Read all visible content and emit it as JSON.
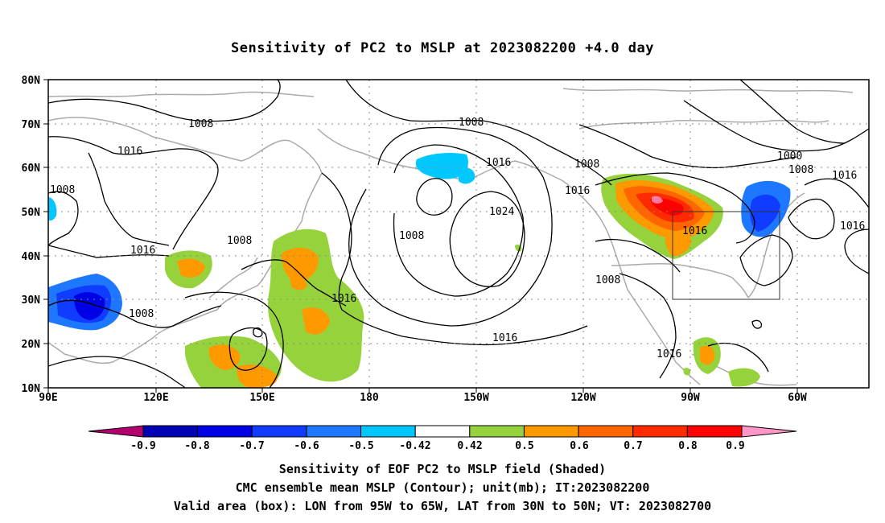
{
  "title": "Sensitivity of PC2 to MSLP at 2023082200 +4.0 day",
  "map": {
    "lon_labels": [
      "90E",
      "120E",
      "150E",
      "180",
      "150W",
      "120W",
      "90W",
      "60W"
    ],
    "lat_labels": [
      "80N",
      "70N",
      "60N",
      "50N",
      "40N",
      "30N",
      "20N",
      "10N"
    ],
    "lon_range": [
      "90E",
      "30W"
    ],
    "lat_range": [
      "10N",
      "80N"
    ],
    "grid": "dotted",
    "valid_box": {
      "lon": [
        "95W",
        "65W"
      ],
      "lat": [
        "30N",
        "50N"
      ]
    },
    "contour_labels": [
      "1008",
      "1016",
      "1024",
      "1000",
      "1016",
      "1008",
      "1016",
      "1008",
      "1016",
      "1008",
      "1016",
      "1008",
      "1016",
      "1016",
      "1008",
      "1016",
      "1008",
      "1008",
      "1008",
      "1016",
      "1016"
    ]
  },
  "colorbar": {
    "labels": [
      "-0.9",
      "-0.8",
      "-0.7",
      "-0.6",
      "-0.5",
      "-0.42",
      "0.42",
      "0.5",
      "0.6",
      "0.7",
      "0.8",
      "0.9"
    ],
    "colors": [
      "#b4006e",
      "#0000b4",
      "#0000e6",
      "#0f3cff",
      "#1e78ff",
      "#00c8ff",
      "#ffffff",
      "#96d23c",
      "#ff9900",
      "#ff6600",
      "#ff2a00",
      "#ff0000",
      "#ff96c8"
    ]
  },
  "captions": {
    "line1": "Sensitivity of EOF PC2 to MSLP field (Shaded)",
    "line2": "CMC ensemble mean MSLP (Contour); unit(mb); IT:2023082200",
    "line3": "Valid area (box): LON from 95W to 65W, LAT from 30N to 50N; VT: 2023082700"
  }
}
